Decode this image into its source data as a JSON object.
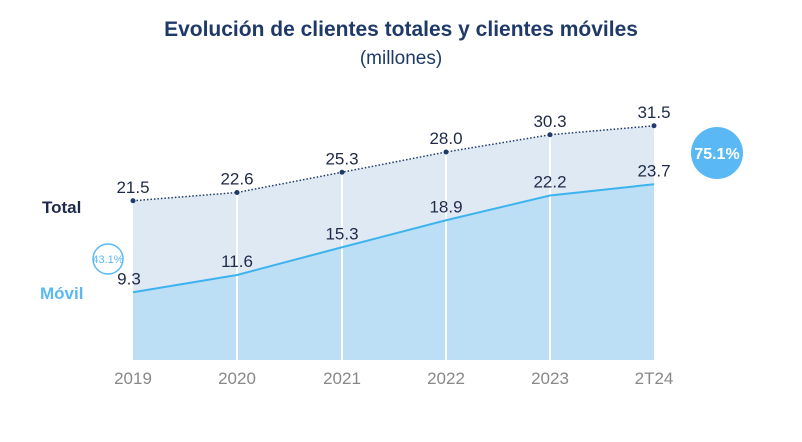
{
  "chart_data": {
    "type": "area",
    "title": "Evolución de clientes totales y clientes móviles",
    "subtitle": "(millones)",
    "categories": [
      "2019",
      "2020",
      "2021",
      "2022",
      "2023",
      "2T24"
    ],
    "series": [
      {
        "name": "Total",
        "values": [
          21.5,
          22.6,
          25.3,
          28.0,
          30.3,
          31.5
        ],
        "labels": [
          "21.5",
          "22.6",
          "25.3",
          "28.0",
          "30.3",
          "31.5"
        ],
        "color": "#1f3a68",
        "fill": "#dfe9f3"
      },
      {
        "name": "Móvil",
        "values": [
          9.3,
          11.6,
          15.3,
          18.9,
          22.2,
          23.7
        ],
        "labels": [
          "9.3",
          "11.6",
          "15.3",
          "18.9",
          "22.2",
          "23.7"
        ],
        "color": "#3db3ee",
        "fill": "#bcdff5"
      }
    ],
    "annotations": {
      "start_share": "43.1%",
      "end_share": "75.1%"
    },
    "ylim": [
      0,
      35
    ]
  }
}
